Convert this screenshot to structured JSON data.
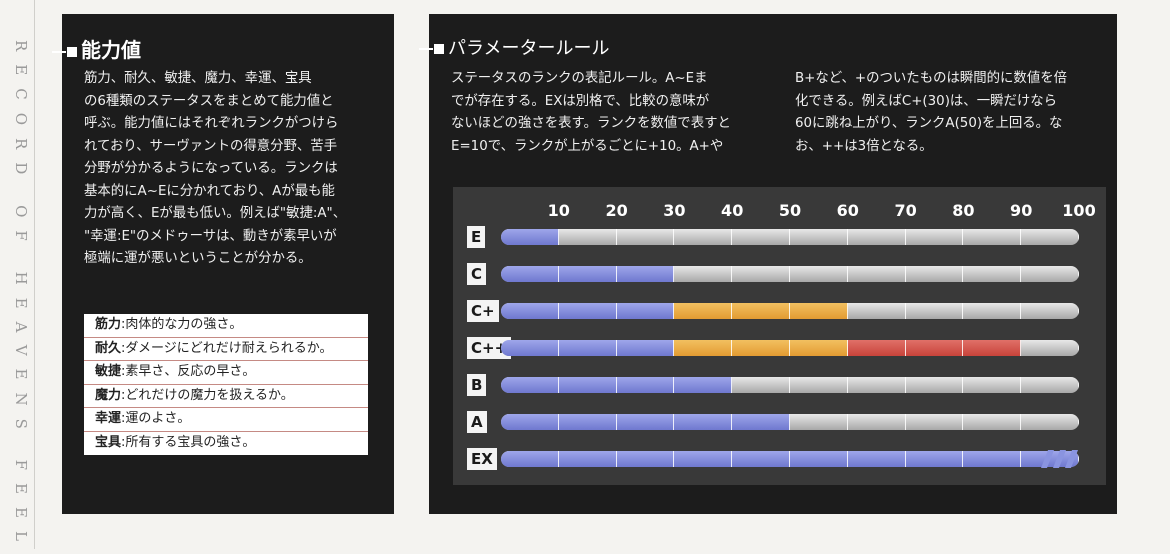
{
  "side_text": "RECORD OF HEAVENS FEEL",
  "left_panel": {
    "title": "能力値",
    "lines": [
      "筋力、耐久、敏捷、魔力、幸運、宝具",
      "の6種類のステータスをまとめて能力値と",
      "呼ぶ。能力値にはそれぞれランクがつけら",
      "れており、サーヴァントの得意分野、苦手",
      "分野が分かるようになっている。ランクは",
      "基本的にA~Eに分かれており、Aが最も能",
      "力が高く、Eが最も低い。例えば\"敏捷:A\"、",
      "\"幸運:E\"のメドゥーサは、動きが素早いが",
      "極端に運が悪いということが分かる。"
    ],
    "definitions": [
      {
        "term": "筋力",
        "desc": ":肉体的な力の強さ。"
      },
      {
        "term": "耐久",
        "desc": ":ダメージにどれだけ耐えられるか。"
      },
      {
        "term": "敏捷",
        "desc": ":素早さ、反応の早さ。"
      },
      {
        "term": "魔力",
        "desc": ":どれだけの魔力を扱えるか。"
      },
      {
        "term": "幸運",
        "desc": ":運のよさ。"
      },
      {
        "term": "宝具",
        "desc": ":所有する宝具の強さ。"
      }
    ]
  },
  "right_panel": {
    "title": "パラメータールール",
    "col1": [
      "ステータスのランクの表記ルール。A~Eま",
      "でが存在する。EXは別格で、比較の意味が",
      "ないほどの強さを表す。ランクを数値で表すと",
      "E=10で、ランクが上がるごとに+10。A+や"
    ],
    "col2": [
      "B+など、+のついたものは瞬間的に数値を倍",
      "化できる。例えばC+(30)は、一瞬だけなら",
      "60に跳ね上がり、ランクA(50)を上回る。な",
      "お、++は3倍となる。"
    ]
  },
  "chart_data": {
    "type": "bar",
    "x_ticks": [
      10,
      20,
      30,
      40,
      50,
      60,
      70,
      80,
      90,
      100
    ],
    "xlim": [
      0,
      100
    ],
    "colors": {
      "base": "#6f78cf",
      "boost": "#e39b32",
      "boost2": "#c8433a",
      "empty": "#bdbdbd"
    },
    "rows": [
      {
        "label": "E",
        "base": 10,
        "boost": 0,
        "boost2": 0,
        "ex": false
      },
      {
        "label": "C",
        "base": 30,
        "boost": 0,
        "boost2": 0,
        "ex": false
      },
      {
        "label": "C+",
        "base": 30,
        "boost": 30,
        "boost2": 0,
        "ex": false
      },
      {
        "label": "C++",
        "base": 30,
        "boost": 30,
        "boost2": 30,
        "ex": false
      },
      {
        "label": "B",
        "base": 40,
        "boost": 0,
        "boost2": 0,
        "ex": false
      },
      {
        "label": "A",
        "base": 50,
        "boost": 0,
        "boost2": 0,
        "ex": false
      },
      {
        "label": "EX",
        "base": 100,
        "boost": 0,
        "boost2": 0,
        "ex": true
      }
    ]
  }
}
